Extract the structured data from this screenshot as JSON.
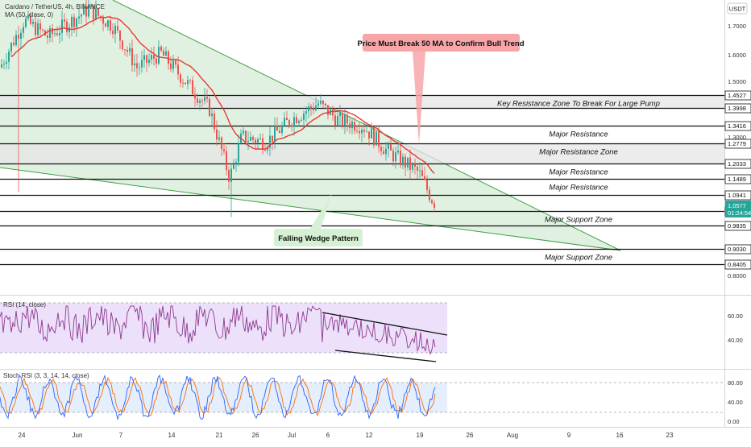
{
  "chart_data": {
    "type": "candlestick",
    "title": "Cardano / TetherUS, 4h, BINANCE",
    "currency": "USDT",
    "indicators": {
      "ma": "MA (50, close, 0)",
      "rsi": "RSI (14, close)",
      "stoch": "Stoch RSI (3, 3, 14, 14, close)"
    },
    "x_ticks": [
      "24",
      "Jun",
      "7",
      "14",
      "21",
      "26",
      "Jul",
      "6",
      "12",
      "19",
      "26",
      "Aug",
      "9",
      "16",
      "23"
    ],
    "y_ticks": [
      "1.7000",
      "1.6000",
      "1.5000",
      "1.3000",
      "0.8000"
    ],
    "levels": [
      {
        "price": "1.4527",
        "label": "Key Resistance Zone To Break For Large Pump"
      },
      {
        "price": "1.3998",
        "label": ""
      },
      {
        "price": "1.3416",
        "label": "Major Resistance"
      },
      {
        "price": "1.2779",
        "label": "Major Resistance Zone"
      },
      {
        "price": "1.2033",
        "label": "Major Resistance"
      },
      {
        "price": "1.1489",
        "label": "Major Resistance"
      },
      {
        "price": "1.0941",
        "label": ""
      },
      {
        "price": "1.0343",
        "label": "Major Support Zone"
      },
      {
        "price": "0.9835",
        "label": ""
      },
      {
        "price": "0.9030",
        "label": "Major Support Zone"
      },
      {
        "price": "0.8405",
        "label": ""
      }
    ],
    "current_price": {
      "value": "1.0577",
      "countdown": "01:24:54"
    },
    "annotations": {
      "ma_note": "Price Must Break 50 MA to Confirm Bull Trend",
      "pattern": "Falling Wedge Pattern"
    },
    "rsi_ticks": [
      "60.00",
      "40.00"
    ],
    "stoch_ticks": [
      "80.00",
      "40.00",
      "0.00"
    ],
    "price_scale": {
      "min": 0.78,
      "max": 1.8
    },
    "colors": {
      "up": "#26a69a",
      "down": "#ef5350",
      "ma": "#e53935",
      "wedge_fill": "#c8e6c9",
      "rsi_line": "#8e3a8e",
      "rsi_band": "#ede0fb",
      "stoch_k": "#2962ff",
      "stoch_d": "#ff6d00",
      "callout_pink": "#f8a5a8",
      "callout_green": "#d6f0d4"
    }
  }
}
